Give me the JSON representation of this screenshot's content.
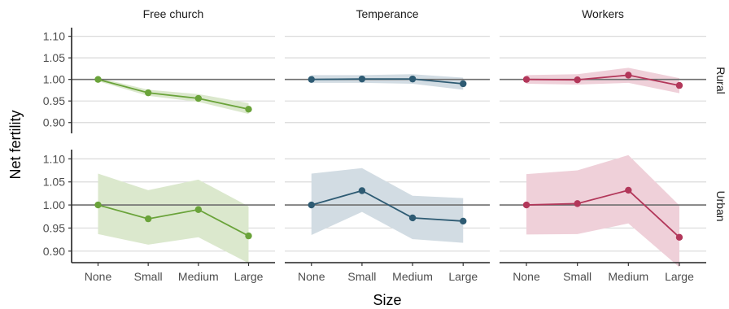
{
  "chart_data": {
    "type": "line",
    "xlabel": "Size",
    "ylabel": "Net fertility",
    "categories": [
      "None",
      "Small",
      "Medium",
      "Large"
    ],
    "ylim": [
      0.875,
      1.12
    ],
    "yticks": [
      0.9,
      0.95,
      1.0,
      1.05,
      1.1
    ],
    "ytick_labels": [
      "0.90",
      "0.95",
      "1.00",
      "1.05",
      "1.10"
    ],
    "reference_line": 1.0,
    "grid": "horizontal",
    "columns": [
      "Free church",
      "Temperance",
      "Workers"
    ],
    "rows": [
      "Rural",
      "Urban"
    ],
    "colors": {
      "Free church": "#6aa33a",
      "Temperance": "#2e5b73",
      "Workers": "#b2375a"
    },
    "band_colors": {
      "Free church": "#dbe8cd",
      "Temperance": "#d2dce3",
      "Workers": "#efd0d9"
    },
    "panels": [
      {
        "column": "Free church",
        "row": "Rural",
        "values": [
          1.0,
          0.969,
          0.956,
          0.931
        ],
        "lower": [
          0.996,
          0.962,
          0.948,
          0.92
        ],
        "upper": [
          1.004,
          0.976,
          0.966,
          0.945
        ]
      },
      {
        "column": "Temperance",
        "row": "Rural",
        "values": [
          1.0,
          1.001,
          1.001,
          0.99
        ],
        "lower": [
          0.992,
          0.992,
          0.99,
          0.976
        ],
        "upper": [
          1.01,
          1.01,
          1.012,
          1.004
        ]
      },
      {
        "column": "Workers",
        "row": "Rural",
        "values": [
          1.0,
          0.999,
          1.01,
          0.986
        ],
        "lower": [
          0.99,
          0.988,
          0.992,
          0.968
        ],
        "upper": [
          1.01,
          1.012,
          1.027,
          1.003
        ]
      },
      {
        "column": "Free church",
        "row": "Urban",
        "values": [
          1.0,
          0.97,
          0.99,
          0.933
        ],
        "lower": [
          0.937,
          0.914,
          0.93,
          0.874
        ],
        "upper": [
          1.068,
          1.032,
          1.055,
          0.997
        ]
      },
      {
        "column": "Temperance",
        "row": "Urban",
        "values": [
          1.0,
          1.031,
          0.972,
          0.965
        ],
        "lower": [
          0.935,
          0.985,
          0.926,
          0.918
        ],
        "upper": [
          1.068,
          1.08,
          1.02,
          1.015
        ]
      },
      {
        "column": "Workers",
        "row": "Urban",
        "values": [
          1.0,
          1.003,
          1.032,
          0.93
        ],
        "lower": [
          0.936,
          0.937,
          0.96,
          0.865
        ],
        "upper": [
          1.067,
          1.075,
          1.108,
          0.999
        ]
      }
    ]
  }
}
